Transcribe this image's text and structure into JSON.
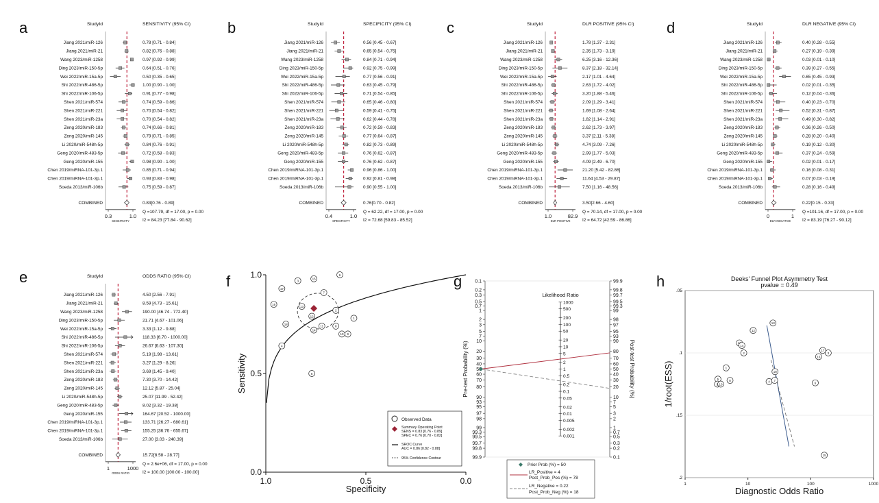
{
  "panel_labels": [
    "a",
    "b",
    "c",
    "d",
    "e",
    "f",
    "g",
    "h"
  ],
  "forest_common": {
    "studyid_header": "StudyId",
    "studies": [
      "Jiang 2021/miR-126",
      "Jiang 2021/miR-21",
      "Wang 2023/miR-1258",
      "Ding 2023/miR-150-5p",
      "Wei 2022/miR-15a-5p",
      "Shi 2022/miR-486-5p",
      "Shi 2022/miR-106-5p",
      "Shen 2021/miR-574",
      "Shen 2021/miR-221",
      "Shen 2021/miR-23a",
      "Zeng 2020/miR-183",
      "Zeng 2020/miR-145",
      "Li 2020/miR-548h-5p",
      "Geng 2020/miR-483-5p",
      "Geng 2020/miR-155",
      "Chen 2019/miRNA-101-3p.1",
      "Chen 2019/miRNA-101-3p.1",
      "Soeda 2013/miR-106b"
    ],
    "combined_label": "COMBINED"
  },
  "chart_data": [
    {
      "type": "forest",
      "panel": "a",
      "header": "SENSITIVITY (95% CI)",
      "axis_label": "SENSITIVITY",
      "scale": "linear",
      "xlim": [
        0.3,
        1.0
      ],
      "ticks": [
        0.3,
        1.0
      ],
      "tick_labels": [
        "0.3",
        "1.0"
      ],
      "pooled_line": 0.83,
      "estimates": [
        0.78,
        0.82,
        0.97,
        0.64,
        0.5,
        1.0,
        0.91,
        0.74,
        0.7,
        0.7,
        0.74,
        0.79,
        0.84,
        0.72,
        0.98,
        0.85,
        0.93,
        0.75
      ],
      "lower": [
        0.71,
        0.76,
        0.92,
        0.51,
        0.35,
        0.9,
        0.77,
        0.59,
        0.54,
        0.54,
        0.66,
        0.71,
        0.76,
        0.58,
        0.9,
        0.71,
        0.83,
        0.59
      ],
      "upper": [
        0.84,
        0.88,
        0.99,
        0.76,
        0.65,
        1.0,
        0.98,
        0.86,
        0.82,
        0.82,
        0.81,
        0.85,
        0.91,
        0.83,
        1.0,
        0.94,
        0.98,
        0.87
      ],
      "ci_text": [
        "0.78 [0.71 - 0.84]",
        "0.82 [0.76 - 0.88]",
        "0.97 [0.92 - 0.99]",
        "0.64 [0.51 - 0.76]",
        "0.50 [0.35 - 0.65]",
        "1.00 [0.90 - 1.00]",
        "0.91 [0.77 - 0.98]",
        "0.74 [0.59 - 0.86]",
        "0.70 [0.54 - 0.82]",
        "0.70 [0.54 - 0.82]",
        "0.74 [0.66 - 0.81]",
        "0.79 [0.71 - 0.85]",
        "0.84 [0.76 - 0.91]",
        "0.72 [0.58 - 0.83]",
        "0.98 [0.90 - 1.00]",
        "0.85 [0.71 - 0.94]",
        "0.93 [0.83 - 0.98]",
        "0.75 [0.59 - 0.87]"
      ],
      "combined": {
        "est": 0.83,
        "lo": 0.76,
        "hi": 0.89
      },
      "combined_text": "0.83[0.76 - 0.89]",
      "q_text": "Q =107.79, df = 17.00, p =  0.00",
      "i2_text": "I2 = 84.23 [77.84 - 90.62]"
    },
    {
      "type": "forest",
      "panel": "b",
      "header": "SPECIFICITY (95% CI)",
      "axis_label": "SPECIFICITY",
      "scale": "linear",
      "xlim": [
        0.4,
        1.0
      ],
      "ticks": [
        0.4,
        1.0
      ],
      "tick_labels": [
        "0.4",
        "1.0"
      ],
      "pooled_line": 0.76,
      "estimates": [
        0.56,
        0.65,
        0.84,
        0.92,
        0.77,
        0.63,
        0.71,
        0.65,
        0.59,
        0.62,
        0.72,
        0.77,
        0.82,
        0.76,
        0.76,
        0.96,
        0.92,
        0.9
      ],
      "lower": [
        0.45,
        0.54,
        0.71,
        0.75,
        0.56,
        0.45,
        0.54,
        0.46,
        0.41,
        0.44,
        0.59,
        0.64,
        0.73,
        0.62,
        0.62,
        0.86,
        0.81,
        0.55
      ],
      "upper": [
        0.67,
        0.75,
        0.94,
        0.99,
        0.91,
        0.79,
        0.85,
        0.8,
        0.75,
        0.78,
        0.83,
        0.87,
        0.89,
        0.87,
        0.87,
        1.0,
        0.98,
        1.0
      ],
      "ci_text": [
        "0.56 [0.45 - 0.67]",
        "0.65 [0.54 - 0.75]",
        "0.84 [0.71 - 0.94]",
        "0.92 [0.75 - 0.99]",
        "0.77 [0.56 - 0.91]",
        "0.63 [0.45 - 0.79]",
        "0.71 [0.54 - 0.85]",
        "0.65 [0.46 - 0.80]",
        "0.59 [0.41 - 0.75]",
        "0.62 [0.44 - 0.78]",
        "0.72 [0.59 - 0.83]",
        "0.77 [0.64 - 0.87]",
        "0.82 [0.73 - 0.89]",
        "0.76 [0.62 - 0.87]",
        "0.76 [0.62 - 0.87]",
        "0.96 [0.86 - 1.00]",
        "0.92 [0.81 - 0.98]",
        "0.90 [0.55 - 1.00]"
      ],
      "combined": {
        "est": 0.76,
        "lo": 0.7,
        "hi": 0.82
      },
      "combined_text": "0.76[0.70 - 0.82]",
      "q_text": "Q = 62.22, df = 17.00, p =  0.00",
      "i2_text": "I2 = 72.68 [59.83 - 85.52]"
    },
    {
      "type": "forest",
      "panel": "c",
      "header": "DLR POSITIVE (95% CI)",
      "axis_label": "DLR POSITIVE",
      "scale": "log",
      "xlim": [
        1.0,
        82.9
      ],
      "ticks": [
        1.0,
        82.9
      ],
      "tick_labels": [
        "1.0",
        "82.9"
      ],
      "pooled_line": 3.5,
      "estimates": [
        1.78,
        2.35,
        6.25,
        8.37,
        2.17,
        2.63,
        3.2,
        2.09,
        1.69,
        1.82,
        2.62,
        3.37,
        4.74,
        2.99,
        4.09,
        21.2,
        11.64,
        7.5
      ],
      "lower": [
        1.37,
        1.73,
        3.16,
        2.18,
        1.01,
        1.72,
        1.88,
        1.29,
        1.08,
        1.14,
        1.73,
        2.11,
        3.09,
        1.77,
        2.49,
        5.42,
        4.53,
        1.16
      ],
      "upper": [
        2.31,
        3.19,
        12.36,
        32.14,
        4.64,
        4.02,
        5.46,
        3.41,
        2.64,
        2.91,
        3.97,
        5.38,
        7.26,
        5.03,
        6.7,
        82.86,
        29.87,
        48.56
      ],
      "ci_text": [
        "1.78 [1.37 - 2.31]",
        "2.35 [1.73 - 3.19]",
        "6.25 [3.16 - 12.36]",
        "8.37 [2.18 - 32.14]",
        "2.17 [1.01 - 4.64]",
        "2.63 [1.72 - 4.02]",
        "3.20 [1.88 - 5.46]",
        "2.09 [1.29 - 3.41]",
        "1.69 [1.08 - 2.64]",
        "1.82 [1.14 - 2.91]",
        "2.62 [1.73 - 3.97]",
        "3.37 [2.11 - 5.38]",
        "4.74 [3.09 - 7.26]",
        "2.99 [1.77 - 5.03]",
        "4.09 [2.49 - 6.70]",
        "21.20 [5.42 - 82.86]",
        "11.64 [4.53 - 29.87]",
        "7.50 [1.16 - 48.56]"
      ],
      "combined": {
        "est": 3.5,
        "lo": 2.66,
        "hi": 4.6
      },
      "combined_text": "3.50[2.66 - 4.60]",
      "q_text": "Q = 70.14, df = 17.00, p =  0.00",
      "i2_text": "I2 = 64.72 [42.59 - 86.86]"
    },
    {
      "type": "forest",
      "panel": "d",
      "header": "DLR NEGATIVE (95% CI)",
      "axis_label": "DLR NEGATIVE",
      "scale": "linear",
      "xlim": [
        0,
        1
      ],
      "ticks": [
        0,
        1
      ],
      "tick_labels": [
        "0",
        "1"
      ],
      "pooled_line": 0.22,
      "estimates": [
        0.4,
        0.27,
        0.03,
        0.39,
        0.65,
        0.02,
        0.12,
        0.4,
        0.52,
        0.49,
        0.36,
        0.28,
        0.19,
        0.37,
        0.02,
        0.16,
        0.07,
        0.28
      ],
      "lower": [
        0.28,
        0.19,
        0.01,
        0.27,
        0.45,
        0.01,
        0.04,
        0.23,
        0.31,
        0.3,
        0.26,
        0.2,
        0.12,
        0.24,
        0.01,
        0.08,
        0.03,
        0.16
      ],
      "upper": [
        0.55,
        0.39,
        0.1,
        0.55,
        0.93,
        0.35,
        0.36,
        0.7,
        0.87,
        0.82,
        0.5,
        0.4,
        0.3,
        0.59,
        0.17,
        0.31,
        0.19,
        0.49
      ],
      "ci_text": [
        "0.40 [0.28 - 0.55]",
        "0.27 [0.19 - 0.39]",
        "0.03 [0.01 - 0.10]",
        "0.39 [0.27 - 0.55]",
        "0.65 [0.45 - 0.93]",
        "0.02 [0.01 - 0.35]",
        "0.12 [0.04 - 0.36]",
        "0.40 [0.23 - 0.70]",
        "0.52 [0.31 - 0.87]",
        "0.49 [0.30 - 0.82]",
        "0.36 [0.26 - 0.50]",
        "0.28 [0.20 - 0.40]",
        "0.19 [0.12 - 0.30]",
        "0.37 [0.24 - 0.59]",
        "0.02 [0.01 - 0.17]",
        "0.16 [0.08 - 0.31]",
        "0.07 [0.03 - 0.19]",
        "0.28 [0.16 - 0.49]"
      ],
      "combined": {
        "est": 0.22,
        "lo": 0.15,
        "hi": 0.33
      },
      "combined_text": "0.22[0.15 - 0.33]",
      "q_text": "Q =101.16, df = 17.00, p =  0.00",
      "i2_text": "I2 = 83.19 [76.27 - 90.12]"
    },
    {
      "type": "forest",
      "panel": "e",
      "header": "ODDS RATIO (95% CI)",
      "axis_label": "ODDS RATIO",
      "scale": "log",
      "xlim": [
        1,
        1000
      ],
      "ticks": [
        1,
        1000
      ],
      "tick_labels": [
        "1",
        "1000"
      ],
      "pooled_line": 15.72,
      "estimates": [
        4.5,
        8.59,
        190.0,
        21.71,
        3.33,
        118.33,
        26.67,
        5.19,
        3.27,
        3.69,
        7.3,
        12.12,
        25.07,
        8.02,
        164.67,
        133.71,
        155.25,
        27.0
      ],
      "lower": [
        2.56,
        4.73,
        46.74,
        4.67,
        1.12,
        6.7,
        6.63,
        1.98,
        1.29,
        1.45,
        3.7,
        5.87,
        11.99,
        3.32,
        20.52,
        26.27,
        36.76,
        3.03
      ],
      "upper": [
        7.91,
        15.61,
        772.4,
        101.06,
        9.88,
        1000.0,
        107.3,
        13.61,
        8.26,
        9.4,
        14.42,
        25.04,
        52.42,
        19.38,
        1000.0,
        680.61,
        655.67,
        240.39
      ],
      "ci_text": [
        "4.50 [2.56 - 7.91]",
        "8.59 [4.73 - 15.61]",
        "190.00 [46.74 - 772.40]",
        "21.71 [4.67 - 101.06]",
        "3.33 [1.12 - 9.88]",
        "118.33 [6.70 - 1000.00]",
        "26.67 [6.63 - 107.30]",
        "5.19 [1.98 - 13.61]",
        "3.27 [1.29 - 8.26]",
        "3.69 [1.45 - 9.40]",
        "7.30 [3.70 - 14.42]",
        "12.12 [5.87 - 25.04]",
        "25.07 [11.99 - 52.42]",
        "8.02 [3.32 - 19.38]",
        "164.67 [20.52 - 1000.00]",
        "133.71 [26.27 - 680.61]",
        "155.25 [36.76 - 655.67]",
        "27.00 [3.03 - 240.39]"
      ],
      "combined": {
        "est": 15.72,
        "lo": 8.58,
        "hi": 28.77
      },
      "combined_text": "15.72[8.58 - 28.77]",
      "q_text": "Q = 2.6e+06, df = 17.00, p =  0.00",
      "i2_text": "I2 = 100.00 [100.00 - 100.00]"
    },
    {
      "type": "scatter",
      "panel": "f",
      "subtype": "sroc",
      "xlabel": "Specificity",
      "ylabel": "Sensitivity",
      "xlim": [
        1.0,
        0.0
      ],
      "ylim": [
        0.0,
        1.0
      ],
      "x_ticks": [
        "1.0",
        "0.5",
        "0.0"
      ],
      "y_ticks": [
        "0.0",
        "0.5",
        "1.0"
      ],
      "points": [
        {
          "id": 1,
          "spec": 0.56,
          "sens": 0.78
        },
        {
          "id": 2,
          "spec": 0.65,
          "sens": 0.82
        },
        {
          "id": 3,
          "spec": 0.84,
          "sens": 0.97
        },
        {
          "id": 4,
          "spec": 0.92,
          "sens": 0.64
        },
        {
          "id": 5,
          "spec": 0.77,
          "sens": 0.5
        },
        {
          "id": 6,
          "spec": 0.63,
          "sens": 1.0
        },
        {
          "id": 7,
          "spec": 0.71,
          "sens": 0.91
        },
        {
          "id": 8,
          "spec": 0.65,
          "sens": 0.74
        },
        {
          "id": 9,
          "spec": 0.59,
          "sens": 0.7
        },
        {
          "id": 10,
          "spec": 0.62,
          "sens": 0.7
        },
        {
          "id": 11,
          "spec": 0.72,
          "sens": 0.74
        },
        {
          "id": 12,
          "spec": 0.77,
          "sens": 0.79
        },
        {
          "id": 13,
          "spec": 0.82,
          "sens": 0.84
        },
        {
          "id": 14,
          "spec": 0.76,
          "sens": 0.72
        },
        {
          "id": 15,
          "spec": 0.76,
          "sens": 0.98
        },
        {
          "id": 16,
          "spec": 0.96,
          "sens": 0.85
        },
        {
          "id": 17,
          "spec": 0.92,
          "sens": 0.93
        },
        {
          "id": 18,
          "spec": 0.9,
          "sens": 0.75
        }
      ],
      "summary_point": {
        "spec": 0.76,
        "sens": 0.83
      },
      "legend": [
        "Observed Data",
        "Summary Operating  Point",
        "SENS = 0.83 [0.76 - 0.89]",
        "SPEC = 0.76 [0.70 - 0.82]",
        "SROC Curve",
        "AUC = 0.86 [0.82 - 0.88]",
        "95% Confidence Contour"
      ]
    },
    {
      "type": "line",
      "panel": "g",
      "subtype": "fagan_nomogram",
      "left_axis_label": "Pre-test Probability (%)",
      "right_axis_label": "Post-test Probability (%)",
      "middle_label": "Likelihood Ratio",
      "left_ticks": [
        "0.1",
        "0.2",
        "0.3",
        "0.5",
        "0.7",
        "1",
        "2",
        "3",
        "5",
        "7",
        "10",
        "20",
        "30",
        "40",
        "50",
        "60",
        "70",
        "80",
        "90",
        "93",
        "95",
        "97",
        "98",
        "99",
        "99.3",
        "99.5",
        "99.7",
        "99.8",
        "99.9"
      ],
      "right_ticks": [
        "99.9",
        "99.8",
        "99.7",
        "99.5",
        "99.3",
        "99",
        "98",
        "97",
        "95",
        "93",
        "90",
        "80",
        "70",
        "60",
        "50",
        "40",
        "30",
        "20",
        "10",
        "7",
        "5",
        "3",
        "2",
        "1",
        "0.7",
        "0.5",
        "0.3",
        "0.2",
        "0.1"
      ],
      "lr_ticks": [
        "1000",
        "500",
        "200",
        "100",
        "50",
        "20",
        "10",
        "5",
        "2",
        "1",
        "0.5",
        "0.2",
        "0.1",
        "0.05",
        "0.02",
        "0.01",
        "0.005",
        "0.002",
        "0.001"
      ],
      "prior_prob": 50,
      "lr_positive": 4,
      "post_prob_pos": 78,
      "lr_negative": 0.22,
      "post_prob_neg": 18,
      "legend": [
        "Prior Prob (%) = 50",
        "LR_Positive = 4",
        "Post_Prob_Pos (%) = 78",
        "LR_Negative = 0.22",
        "Post_Prob_Neg (%) = 18"
      ]
    },
    {
      "type": "scatter",
      "panel": "h",
      "subtype": "deeks_funnel",
      "title": "Deeks' Funnel Plot Asymmetry Test",
      "subtitle": "pvalue =    0.49",
      "xlabel": "Diagnostic Odds Ratio",
      "ylabel": "1/root(ESS)",
      "scale_x": "log",
      "xlim": [
        1,
        1000
      ],
      "x_ticks": [
        "1",
        "10",
        "100",
        "1000"
      ],
      "ylim": [
        0.2,
        0.05
      ],
      "y_ticks": [
        ".05",
        ".1",
        ".15",
        ".2"
      ],
      "points": [
        {
          "id": 1,
          "dor": 4.5,
          "y": 0.112
        },
        {
          "id": 2,
          "dor": 8.59,
          "y": 0.1
        },
        {
          "id": 3,
          "dor": 190.0,
          "y": 0.1
        },
        {
          "id": 4,
          "dor": 21.71,
          "y": 0.123
        },
        {
          "id": 5,
          "dor": 3.33,
          "y": 0.121
        },
        {
          "id": 6,
          "dor": 118.33,
          "y": 0.124
        },
        {
          "id": 7,
          "dor": 26.67,
          "y": 0.122
        },
        {
          "id": 8,
          "dor": 5.19,
          "y": 0.122
        },
        {
          "id": 9,
          "dor": 3.27,
          "y": 0.125
        },
        {
          "id": 10,
          "dor": 3.69,
          "y": 0.125
        },
        {
          "id": 11,
          "dor": 7.3,
          "y": 0.092
        },
        {
          "id": 12,
          "dor": 12.12,
          "y": 0.082
        },
        {
          "id": 13,
          "dor": 25.07,
          "y": 0.076
        },
        {
          "id": 14,
          "dor": 8.02,
          "y": 0.094
        },
        {
          "id": 15,
          "dor": 164.67,
          "y": 0.182
        },
        {
          "id": 16,
          "dor": 133.71,
          "y": 0.103
        },
        {
          "id": 17,
          "dor": 155.25,
          "y": 0.098
        },
        {
          "id": 18,
          "dor": 27.0,
          "y": 0.115
        }
      ],
      "fit_line": {
        "x": [
          20,
          45
        ],
        "y": [
          0.078,
          0.175
        ]
      }
    }
  ]
}
